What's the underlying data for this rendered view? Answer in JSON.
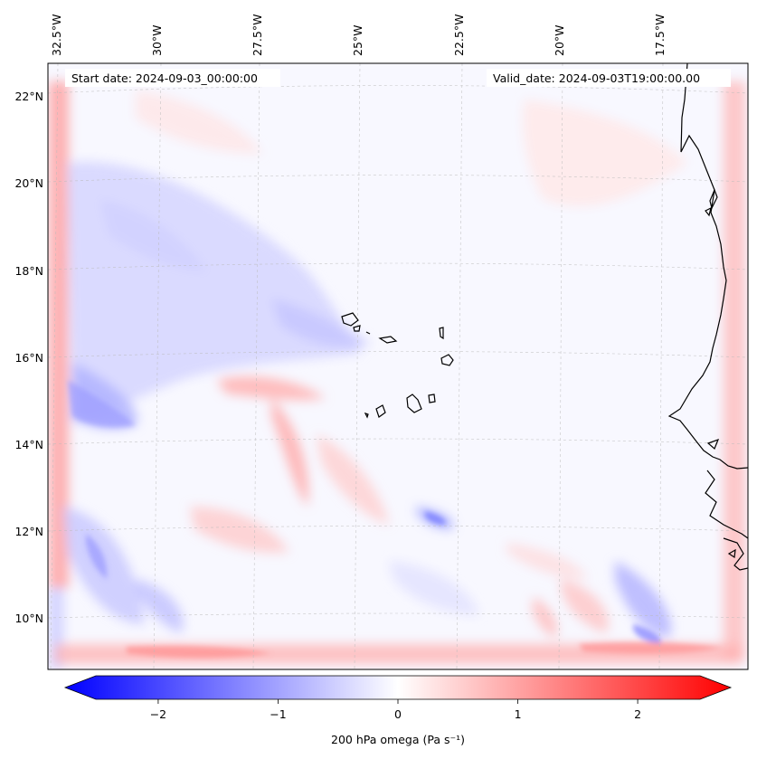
{
  "map": {
    "start_date": "Start date: 2024-09-03_00:00:00",
    "valid_date": "Valid_date: 2024-09-03T19:00:00.00",
    "lon_labels": [
      {
        "lon": -32.5,
        "label": "32.5°W"
      },
      {
        "lon": -30.0,
        "label": "30°W"
      },
      {
        "lon": -27.5,
        "label": "27.5°W"
      },
      {
        "lon": -25.0,
        "label": "25°W"
      },
      {
        "lon": -22.5,
        "label": "22.5°W"
      },
      {
        "lon": -20.0,
        "label": "20°W"
      },
      {
        "lon": -17.5,
        "label": "17.5°W"
      }
    ],
    "lat_labels": [
      {
        "lat": 22,
        "label": "22°N"
      },
      {
        "lat": 20,
        "label": "20°N"
      },
      {
        "lat": 18,
        "label": "18°N"
      },
      {
        "lat": 16,
        "label": "16°N"
      },
      {
        "lat": 14,
        "label": "14°N"
      },
      {
        "lat": 12,
        "label": "12°N"
      },
      {
        "lat": 10,
        "label": "10°N"
      }
    ],
    "features": [
      "Cape Verde islands",
      "West African coastline"
    ]
  },
  "colorbar": {
    "label": "200 hPa omega (Pa s⁻¹)",
    "range": [
      -2.6,
      2.6
    ],
    "ticks": [
      {
        "value": -2,
        "label": "−2"
      },
      {
        "value": -1,
        "label": "−1"
      },
      {
        "value": 0,
        "label": "0"
      },
      {
        "value": 1,
        "label": "1"
      },
      {
        "value": 2,
        "label": "2"
      }
    ],
    "colors": {
      "negative": "#0000ff",
      "zero": "#ffffff",
      "positive": "#ff0000"
    }
  }
}
